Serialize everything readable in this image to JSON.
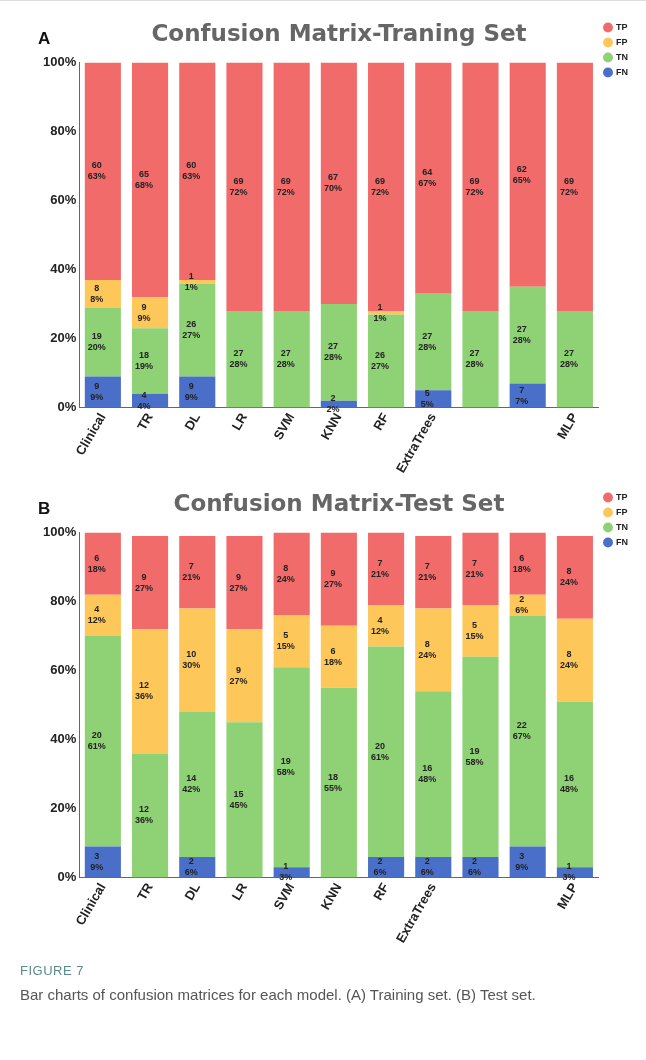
{
  "chart_data": [
    {
      "type": "bar",
      "title": "Confusion Matrix-Traning Set",
      "stacked": true,
      "categories": [
        "Clinical",
        "TR",
        "DL",
        "LR",
        "SVM",
        "KNN",
        "RF",
        "ExtraTrees",
        null,
        null,
        "MLP"
      ],
      "ylim": [
        0,
        100
      ],
      "yticks": [
        {
          "value": 0,
          "label": "0%"
        },
        {
          "value": 20,
          "label": "20%"
        },
        {
          "value": 40,
          "label": "40%"
        },
        {
          "value": 60,
          "label": "60%"
        },
        {
          "value": 80,
          "label": "80%"
        },
        {
          "value": 100,
          "label": "100%"
        }
      ],
      "grid": false,
      "legend": "top right",
      "annotations": [
        "A"
      ],
      "series": [
        {
          "name": "FN",
          "color": "#4a6fc8",
          "values": [
            9,
            4,
            9,
            null,
            null,
            2,
            null,
            5,
            null,
            7,
            null
          ],
          "value_labels": [
            "9\n9%",
            "4\n4%",
            "9\n9%",
            null,
            null,
            "2\n2%",
            null,
            "5\n5%",
            null,
            "7\n7%",
            null
          ]
        },
        {
          "name": "TN",
          "color": "#8fd175",
          "values": [
            20,
            19,
            27,
            28,
            28,
            28,
            27,
            28,
            28,
            28,
            28
          ],
          "value_labels": [
            "19\n20%",
            "18\n19%",
            "26\n27%",
            "27\n28%",
            "27\n28%",
            "27\n28%",
            "26\n27%",
            "27\n28%",
            "27\n28%",
            "27\n28%",
            "27\n28%"
          ]
        },
        {
          "name": "FP",
          "color": "#fdc75a",
          "values": [
            8,
            9,
            1,
            null,
            null,
            null,
            1,
            null,
            null,
            null,
            null
          ],
          "value_labels": [
            "8\n8%",
            "9\n9%",
            "1\n1%",
            null,
            null,
            null,
            "1\n1%",
            null,
            null,
            null,
            null
          ]
        },
        {
          "name": "TP",
          "color": "#f26b6b",
          "values": [
            63,
            68,
            63,
            72,
            72,
            70,
            72,
            67,
            72,
            65,
            72
          ],
          "value_labels": [
            "60\n63%",
            "65\n68%",
            "60\n63%",
            "69\n72%",
            "69\n72%",
            "67\n70%",
            "69\n72%",
            "64\n67%",
            "69\n72%",
            "62\n65%",
            "69\n72%"
          ]
        }
      ]
    },
    {
      "type": "bar",
      "title": "Confusion Matrix-Test Set",
      "stacked": true,
      "categories": [
        "Clinical",
        "TR",
        "DL",
        "LR",
        "SVM",
        "KNN",
        "RF",
        "ExtraTrees",
        null,
        null,
        "MLP"
      ],
      "ylim": [
        0,
        100
      ],
      "yticks": [
        {
          "value": 0,
          "label": "0%"
        },
        {
          "value": 20,
          "label": "20%"
        },
        {
          "value": 40,
          "label": "40%"
        },
        {
          "value": 60,
          "label": "60%"
        },
        {
          "value": 80,
          "label": "80%"
        },
        {
          "value": 100,
          "label": "100%"
        }
      ],
      "grid": false,
      "legend": "top right",
      "annotations": [
        "B",
        "FIGURE 7",
        "Bar charts of confusion matrices for each model. (A) Training set. (B) Test set."
      ],
      "series": [
        {
          "name": "FN",
          "color": "#4a6fc8",
          "values": [
            9,
            null,
            6,
            null,
            3,
            null,
            6,
            6,
            6,
            9,
            3
          ],
          "value_labels": [
            "3\n9%",
            null,
            "2\n6%",
            null,
            "1\n3%",
            null,
            "2\n6%",
            "2\n6%",
            "2\n6%",
            "3\n9%",
            "1\n3%"
          ]
        },
        {
          "name": "TN",
          "color": "#8fd175",
          "values": [
            61,
            36,
            42,
            45,
            58,
            55,
            61,
            48,
            58,
            67,
            48
          ],
          "value_labels": [
            "20\n61%",
            "12\n36%",
            "14\n42%",
            "15\n45%",
            "19\n58%",
            "18\n55%",
            "20\n61%",
            "16\n48%",
            "19\n58%",
            "22\n67%",
            "16\n48%"
          ]
        },
        {
          "name": "FP",
          "color": "#fdc75a",
          "values": [
            12,
            36,
            30,
            27,
            15,
            18,
            12,
            24,
            15,
            6,
            24
          ],
          "value_labels": [
            "4\n12%",
            "12\n36%",
            "10\n30%",
            "9\n27%",
            "5\n15%",
            "6\n18%",
            "4\n12%",
            "8\n24%",
            "5\n15%",
            "2\n6%",
            "8\n24%"
          ]
        },
        {
          "name": "TP",
          "color": "#f26b6b",
          "values": [
            18,
            27,
            21,
            27,
            24,
            27,
            21,
            21,
            21,
            18,
            24
          ],
          "value_labels": [
            "6\n18%",
            "9\n27%",
            "7\n21%",
            "9\n27%",
            "8\n24%",
            "9\n27%",
            "7\n21%",
            "7\n21%",
            "7\n21%",
            "6\n18%",
            "8\n24%"
          ]
        }
      ]
    }
  ]
}
